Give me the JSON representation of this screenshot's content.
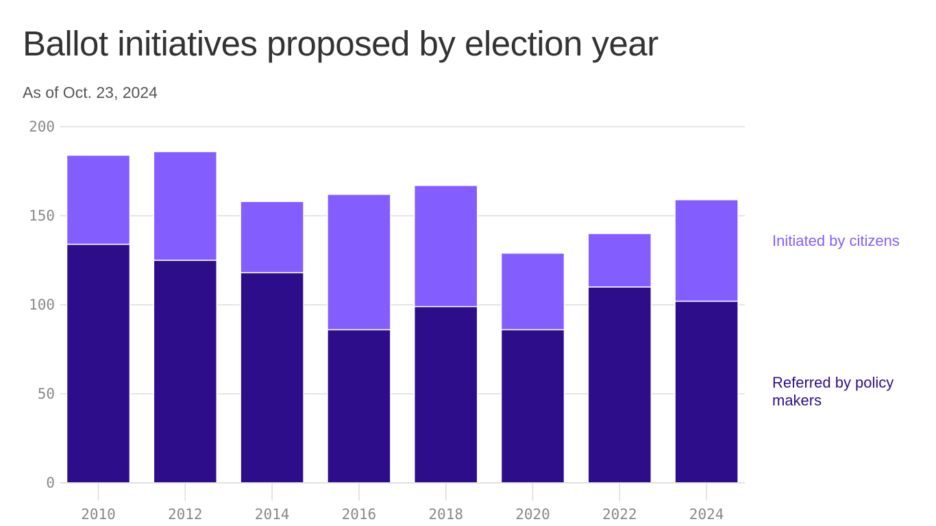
{
  "title": "Ballot initiatives proposed by election year",
  "subtitle": "As of Oct. 23, 2024",
  "colors": {
    "citizens": "#845dff",
    "referred": "#2e0d8a",
    "grid": "#dcdcdc",
    "tick_text": "#888888",
    "background": "#ffffff"
  },
  "chart_data": {
    "type": "bar",
    "stacked": true,
    "categories": [
      "2010",
      "2012",
      "2014",
      "2016",
      "2018",
      "2020",
      "2022",
      "2024"
    ],
    "series": [
      {
        "name": "Referred by policy makers",
        "key": "referred",
        "values": [
          134,
          125,
          118,
          86,
          99,
          86,
          110,
          102
        ]
      },
      {
        "name": "Initiated by citizens",
        "key": "citizens",
        "values": [
          50,
          61,
          40,
          76,
          68,
          43,
          30,
          57
        ]
      }
    ],
    "yticks": [
      0,
      50,
      100,
      150,
      200
    ],
    "ylim": [
      0,
      200
    ],
    "grid": true,
    "legend_placement": "right, inline labels"
  }
}
